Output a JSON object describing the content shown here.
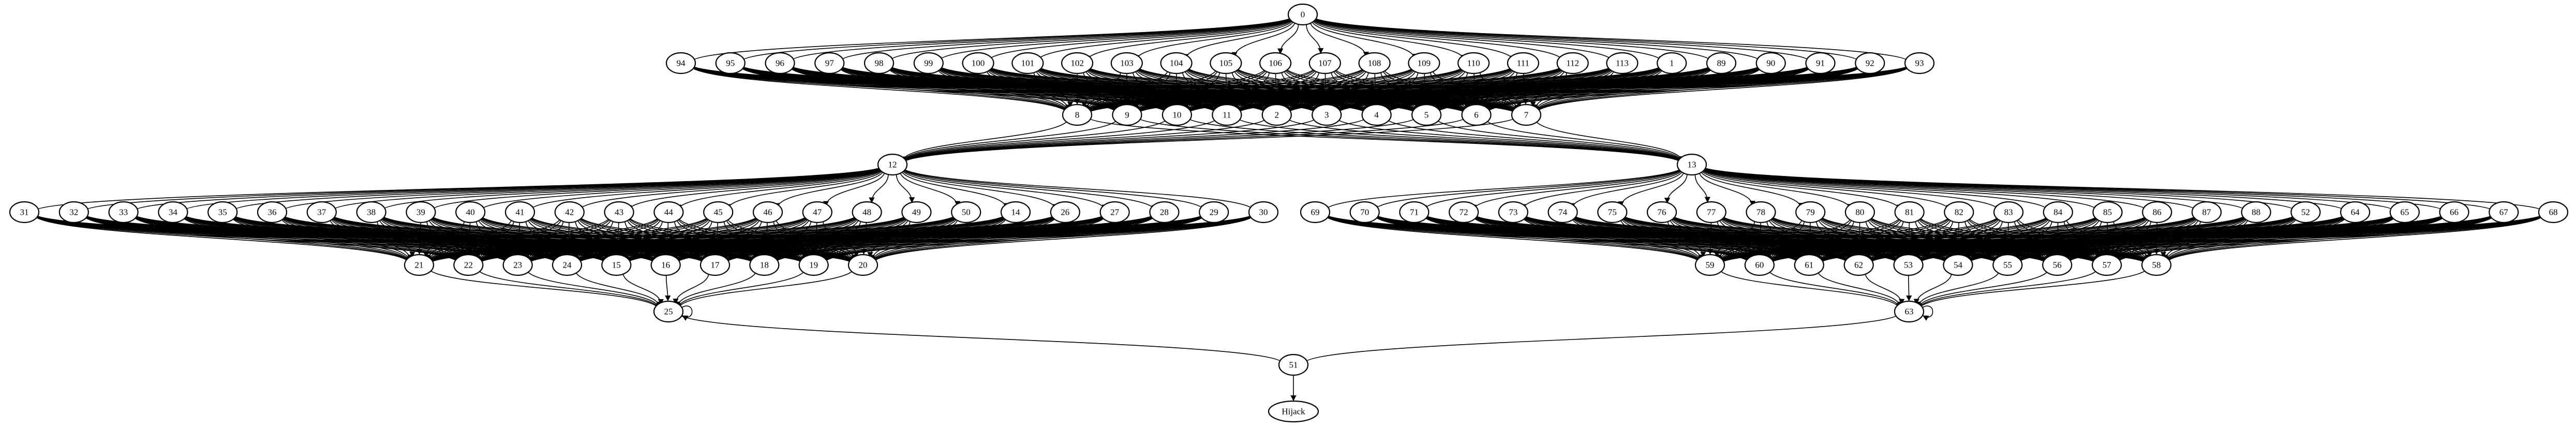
{
  "diagram": {
    "type": "directed-graph",
    "colors": {
      "default_stroke": "#000000",
      "yellow": "#ffd200",
      "blue": "#0000ff",
      "red": "#ff0000"
    },
    "nodes": [
      {
        "id": "0",
        "label": "0"
      },
      {
        "id": "94",
        "label": "94"
      },
      {
        "id": "95",
        "label": "95"
      },
      {
        "id": "96",
        "label": "96"
      },
      {
        "id": "97",
        "label": "97"
      },
      {
        "id": "98",
        "label": "98"
      },
      {
        "id": "99",
        "label": "99"
      },
      {
        "id": "100",
        "label": "100"
      },
      {
        "id": "101",
        "label": "101"
      },
      {
        "id": "102",
        "label": "102"
      },
      {
        "id": "103",
        "label": "103"
      },
      {
        "id": "104",
        "label": "104"
      },
      {
        "id": "105",
        "label": "105"
      },
      {
        "id": "106",
        "label": "106"
      },
      {
        "id": "107",
        "label": "107"
      },
      {
        "id": "108",
        "label": "108"
      },
      {
        "id": "109",
        "label": "109"
      },
      {
        "id": "110",
        "label": "110"
      },
      {
        "id": "111",
        "label": "111"
      },
      {
        "id": "112",
        "label": "112"
      },
      {
        "id": "113",
        "label": "113"
      },
      {
        "id": "1",
        "label": "1"
      },
      {
        "id": "89",
        "label": "89"
      },
      {
        "id": "90",
        "label": "90"
      },
      {
        "id": "91",
        "label": "91"
      },
      {
        "id": "92",
        "label": "92"
      },
      {
        "id": "93",
        "label": "93"
      },
      {
        "id": "8",
        "label": "8"
      },
      {
        "id": "9",
        "label": "9"
      },
      {
        "id": "10",
        "label": "10"
      },
      {
        "id": "11",
        "label": "11"
      },
      {
        "id": "2",
        "label": "2"
      },
      {
        "id": "3",
        "label": "3"
      },
      {
        "id": "4",
        "label": "4"
      },
      {
        "id": "5",
        "label": "5"
      },
      {
        "id": "6",
        "label": "6"
      },
      {
        "id": "7",
        "label": "7"
      },
      {
        "id": "12",
        "label": "12",
        "color": "yellow"
      },
      {
        "id": "13",
        "label": "13",
        "color": "yellow"
      },
      {
        "id": "31",
        "label": "31"
      },
      {
        "id": "32",
        "label": "32"
      },
      {
        "id": "33",
        "label": "33"
      },
      {
        "id": "34",
        "label": "34"
      },
      {
        "id": "35",
        "label": "35"
      },
      {
        "id": "36",
        "label": "36"
      },
      {
        "id": "37",
        "label": "37"
      },
      {
        "id": "38",
        "label": "38"
      },
      {
        "id": "39",
        "label": "39"
      },
      {
        "id": "40",
        "label": "40"
      },
      {
        "id": "41",
        "label": "41"
      },
      {
        "id": "42",
        "label": "42"
      },
      {
        "id": "43",
        "label": "43"
      },
      {
        "id": "44",
        "label": "44"
      },
      {
        "id": "45",
        "label": "45"
      },
      {
        "id": "46",
        "label": "46"
      },
      {
        "id": "47",
        "label": "47"
      },
      {
        "id": "48",
        "label": "48"
      },
      {
        "id": "49",
        "label": "49"
      },
      {
        "id": "50",
        "label": "50"
      },
      {
        "id": "14",
        "label": "14"
      },
      {
        "id": "26",
        "label": "26"
      },
      {
        "id": "27",
        "label": "27"
      },
      {
        "id": "28",
        "label": "28"
      },
      {
        "id": "29",
        "label": "29"
      },
      {
        "id": "30",
        "label": "30"
      },
      {
        "id": "21",
        "label": "21"
      },
      {
        "id": "22",
        "label": "22"
      },
      {
        "id": "23",
        "label": "23"
      },
      {
        "id": "24",
        "label": "24"
      },
      {
        "id": "15",
        "label": "15"
      },
      {
        "id": "16",
        "label": "16"
      },
      {
        "id": "17",
        "label": "17"
      },
      {
        "id": "18",
        "label": "18"
      },
      {
        "id": "19",
        "label": "19"
      },
      {
        "id": "20",
        "label": "20"
      },
      {
        "id": "25",
        "label": "25",
        "color": "blue"
      },
      {
        "id": "69",
        "label": "69"
      },
      {
        "id": "70",
        "label": "70"
      },
      {
        "id": "71",
        "label": "71"
      },
      {
        "id": "72",
        "label": "72"
      },
      {
        "id": "73",
        "label": "73"
      },
      {
        "id": "74",
        "label": "74"
      },
      {
        "id": "75",
        "label": "75"
      },
      {
        "id": "76",
        "label": "76"
      },
      {
        "id": "77",
        "label": "77"
      },
      {
        "id": "78",
        "label": "78"
      },
      {
        "id": "79",
        "label": "79"
      },
      {
        "id": "80",
        "label": "80"
      },
      {
        "id": "81",
        "label": "81"
      },
      {
        "id": "82",
        "label": "82"
      },
      {
        "id": "83",
        "label": "83"
      },
      {
        "id": "84",
        "label": "84"
      },
      {
        "id": "85",
        "label": "85"
      },
      {
        "id": "86",
        "label": "86"
      },
      {
        "id": "87",
        "label": "87"
      },
      {
        "id": "88",
        "label": "88"
      },
      {
        "id": "52",
        "label": "52"
      },
      {
        "id": "64",
        "label": "64"
      },
      {
        "id": "65",
        "label": "65"
      },
      {
        "id": "66",
        "label": "66"
      },
      {
        "id": "67",
        "label": "67"
      },
      {
        "id": "68",
        "label": "68"
      },
      {
        "id": "59",
        "label": "59"
      },
      {
        "id": "60",
        "label": "60"
      },
      {
        "id": "61",
        "label": "61"
      },
      {
        "id": "62",
        "label": "62"
      },
      {
        "id": "53",
        "label": "53"
      },
      {
        "id": "54",
        "label": "54"
      },
      {
        "id": "55",
        "label": "55"
      },
      {
        "id": "56",
        "label": "56"
      },
      {
        "id": "57",
        "label": "57"
      },
      {
        "id": "58",
        "label": "58"
      },
      {
        "id": "63",
        "label": "63",
        "color": "blue"
      },
      {
        "id": "51",
        "label": "51"
      },
      {
        "id": "Hijack",
        "label": "Hijack",
        "color": "red"
      }
    ],
    "edge_groups": [
      {
        "from": [
          "0"
        ],
        "to": [
          "94",
          "95",
          "96",
          "97",
          "98",
          "99",
          "100",
          "101",
          "102",
          "103",
          "104",
          "105",
          "106",
          "107",
          "108",
          "109",
          "110",
          "111",
          "112",
          "113",
          "1",
          "89",
          "90",
          "91",
          "92",
          "93"
        ]
      },
      {
        "from": [
          "94",
          "95",
          "96",
          "97",
          "98",
          "99",
          "100",
          "101",
          "102",
          "103",
          "104",
          "105",
          "106",
          "107",
          "108",
          "109",
          "110",
          "111",
          "112",
          "113",
          "1",
          "89",
          "90",
          "91",
          "92",
          "93"
        ],
        "to": [
          "8",
          "9",
          "10",
          "11",
          "2",
          "3",
          "4",
          "5",
          "6",
          "7"
        ]
      },
      {
        "from": [
          "8",
          "9",
          "10",
          "11",
          "2",
          "3",
          "4",
          "5",
          "6",
          "7"
        ],
        "to": [
          "12",
          "13"
        ]
      },
      {
        "from": [
          "12"
        ],
        "to": [
          "31",
          "32",
          "33",
          "34",
          "35",
          "36",
          "37",
          "38",
          "39",
          "40",
          "41",
          "42",
          "43",
          "44",
          "45",
          "46",
          "47",
          "48",
          "49",
          "50",
          "14",
          "26",
          "27",
          "28",
          "29",
          "30"
        ]
      },
      {
        "from": [
          "31",
          "32",
          "33",
          "34",
          "35",
          "36",
          "37",
          "38",
          "39",
          "40",
          "41",
          "42",
          "43",
          "44",
          "45",
          "46",
          "47",
          "48",
          "49",
          "50",
          "14",
          "26",
          "27",
          "28",
          "29",
          "30"
        ],
        "to": [
          "21",
          "22",
          "23",
          "24",
          "15",
          "16",
          "17",
          "18",
          "19",
          "20"
        ]
      },
      {
        "from": [
          "21",
          "22",
          "23",
          "24",
          "15",
          "16",
          "17",
          "18",
          "19",
          "20"
        ],
        "to": [
          "25"
        ]
      },
      {
        "from": [
          "13"
        ],
        "to": [
          "69",
          "70",
          "71",
          "72",
          "73",
          "74",
          "75",
          "76",
          "77",
          "78",
          "79",
          "80",
          "81",
          "82",
          "83",
          "84",
          "85",
          "86",
          "87",
          "88",
          "52",
          "64",
          "65",
          "66",
          "67",
          "68"
        ]
      },
      {
        "from": [
          "69",
          "70",
          "71",
          "72",
          "73",
          "74",
          "75",
          "76",
          "77",
          "78",
          "79",
          "80",
          "81",
          "82",
          "83",
          "84",
          "85",
          "86",
          "87",
          "88",
          "52",
          "64",
          "65",
          "66",
          "67",
          "68"
        ],
        "to": [
          "59",
          "60",
          "61",
          "62",
          "53",
          "54",
          "55",
          "56",
          "57",
          "58"
        ]
      },
      {
        "from": [
          "59",
          "60",
          "61",
          "62",
          "53",
          "54",
          "55",
          "56",
          "57",
          "58"
        ],
        "to": [
          "63"
        ]
      },
      {
        "from": [
          "25",
          "63"
        ],
        "to": [
          "51"
        ]
      },
      {
        "from": [
          "51"
        ],
        "to": [
          "Hijack"
        ]
      }
    ],
    "self_loops": [
      "25",
      "63"
    ]
  }
}
